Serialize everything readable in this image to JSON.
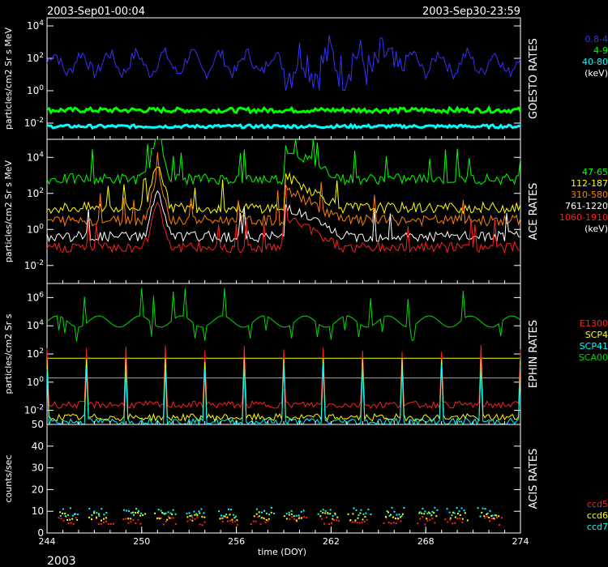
{
  "header": {
    "start": "2003-Sep01-00:04",
    "end": "2003-Sep30-23:59"
  },
  "footer": {
    "year": "2003"
  },
  "colors": {
    "background": "#000000",
    "axes": "#ffffff"
  },
  "chart_data": [
    {
      "type": "line",
      "title": "GOESTO RATES",
      "ylabel": "particles/cm2 Sr s MeV",
      "yscale": "log",
      "ylim_exp": [
        -3,
        4.5
      ],
      "yticks": [
        "10-2",
        "100",
        "102",
        "104"
      ],
      "legend": {
        "unit": "(keV)"
      },
      "series": [
        {
          "name": "0.8-4",
          "color": "#3333ff",
          "style": "variable",
          "base": 1.7,
          "amp": 1.3
        },
        {
          "name": "4-9",
          "color": "#00ff00",
          "style": "band",
          "base": -1.2,
          "amp": 0.3
        },
        {
          "name": "40-80",
          "color": "#00ffff",
          "style": "band",
          "base": -2.2,
          "amp": 0.2
        }
      ]
    },
    {
      "type": "line",
      "title": "ACE RATES",
      "ylabel": "particles/cm2 Sr s MeV",
      "yscale": "log",
      "ylim_exp": [
        -3,
        5
      ],
      "yticks": [
        "10-2",
        "100",
        "102",
        "104"
      ],
      "legend": {
        "unit": "(keV)"
      },
      "series": [
        {
          "name": "47-65",
          "color": "#00ff00",
          "base": 2.8
        },
        {
          "name": "112-187",
          "color": "#ffff00",
          "base": 1.2
        },
        {
          "name": "310-580",
          "color": "#ff8000",
          "base": 0.5
        },
        {
          "name": "761-1220",
          "color": "#ffffff",
          "base": -0.4
        },
        {
          "name": "1060-1910",
          "color": "#ff2020",
          "base": -1.0
        }
      ]
    },
    {
      "type": "line",
      "title": "EPHIN RATES",
      "ylabel": "particles/cm2 Sr s",
      "yscale": "log",
      "ylim_exp": [
        -3,
        7
      ],
      "yticks": [
        "10-2",
        "100",
        "102",
        "104",
        "106"
      ],
      "series": [
        {
          "name": "E1300",
          "color": "#ff2020",
          "base": -1.6
        },
        {
          "name": "SCP4",
          "color": "#ffff00",
          "base": -2.5
        },
        {
          "name": "SCP41",
          "color": "#00ffff",
          "base": -2.8
        },
        {
          "name": "SCA00",
          "color": "#00dd00",
          "base": 4.3
        }
      ],
      "reference_lines": [
        {
          "color": "#ffff00",
          "value_exp": 1.7
        },
        {
          "color": "#aaaaaa",
          "value_exp": 0.3
        }
      ]
    },
    {
      "type": "scatter",
      "title": "ACIS RATES",
      "ylabel": "counts/sec",
      "ylim": [
        0,
        50
      ],
      "yticks": [
        "0",
        "10",
        "20",
        "30",
        "40",
        "50"
      ],
      "xlabel": "time (DOY)",
      "xlim": [
        244,
        274
      ],
      "xticks": [
        "244",
        "250",
        "256",
        "262",
        "268",
        "274"
      ],
      "series": [
        {
          "name": "ccd5",
          "color": "#ff2020"
        },
        {
          "name": "ccd6",
          "color": "#ffff00"
        },
        {
          "name": "ccd7",
          "color": "#00ffff"
        }
      ]
    }
  ]
}
